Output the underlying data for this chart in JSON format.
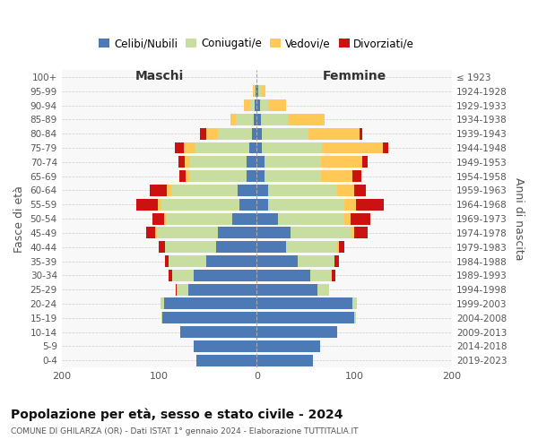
{
  "age_groups": [
    "0-4",
    "5-9",
    "10-14",
    "15-19",
    "20-24",
    "25-29",
    "30-34",
    "35-39",
    "40-44",
    "45-49",
    "50-54",
    "55-59",
    "60-64",
    "65-69",
    "70-74",
    "75-79",
    "80-84",
    "85-89",
    "90-94",
    "95-99",
    "100+"
  ],
  "birth_years": [
    "2019-2023",
    "2014-2018",
    "2009-2013",
    "2004-2008",
    "1999-2003",
    "1994-1998",
    "1989-1993",
    "1984-1988",
    "1979-1983",
    "1974-1978",
    "1969-1973",
    "1964-1968",
    "1959-1963",
    "1954-1958",
    "1949-1953",
    "1944-1948",
    "1939-1943",
    "1934-1938",
    "1929-1933",
    "1924-1928",
    "≤ 1923"
  ],
  "colors": {
    "celibi": "#4d7ab5",
    "coniugati": "#c8dda0",
    "vedovi": "#ffc857",
    "divorziati": "#cc1111"
  },
  "m_cel": [
    62,
    65,
    78,
    97,
    95,
    70,
    65,
    52,
    42,
    40,
    25,
    18,
    20,
    10,
    10,
    8,
    5,
    3,
    2,
    1,
    0
  ],
  "m_con": [
    0,
    0,
    0,
    1,
    4,
    12,
    22,
    38,
    52,
    62,
    68,
    80,
    68,
    58,
    58,
    55,
    35,
    18,
    5,
    1,
    0
  ],
  "m_ved": [
    0,
    0,
    0,
    0,
    0,
    0,
    0,
    0,
    0,
    2,
    2,
    3,
    4,
    5,
    6,
    12,
    12,
    6,
    6,
    2,
    0
  ],
  "m_div": [
    0,
    0,
    0,
    0,
    0,
    1,
    3,
    4,
    6,
    9,
    12,
    22,
    18,
    6,
    6,
    9,
    6,
    0,
    0,
    0,
    0
  ],
  "f_cel": [
    58,
    65,
    82,
    100,
    98,
    62,
    55,
    42,
    30,
    35,
    22,
    12,
    12,
    8,
    8,
    5,
    5,
    4,
    3,
    2,
    0
  ],
  "f_con": [
    0,
    0,
    0,
    2,
    5,
    12,
    22,
    38,
    52,
    62,
    68,
    78,
    70,
    58,
    58,
    62,
    48,
    28,
    9,
    2,
    0
  ],
  "f_ved": [
    0,
    0,
    0,
    0,
    0,
    0,
    0,
    0,
    2,
    3,
    6,
    12,
    18,
    32,
    42,
    62,
    52,
    38,
    18,
    5,
    0
  ],
  "f_div": [
    0,
    0,
    0,
    0,
    0,
    0,
    4,
    4,
    6,
    14,
    20,
    28,
    12,
    9,
    6,
    6,
    3,
    0,
    0,
    0,
    0
  ],
  "xlim": 200,
  "title": "Popolazione per età, sesso e stato civile - 2024",
  "subtitle": "COMUNE DI GHILARZA (OR) - Dati ISTAT 1° gennaio 2024 - Elaborazione TUTTITALIA.IT",
  "ylabel_left": "Fasce di età",
  "ylabel_right": "Anni di nascita",
  "label_maschi": "Maschi",
  "label_femmine": "Femmine",
  "legend_labels": [
    "Celibi/Nubili",
    "Coniugati/e",
    "Vedovi/e",
    "Divorziati/e"
  ],
  "bg_color": "#ffffff",
  "plot_bg": "#f8f8f8",
  "grid_color": "#cccccc"
}
